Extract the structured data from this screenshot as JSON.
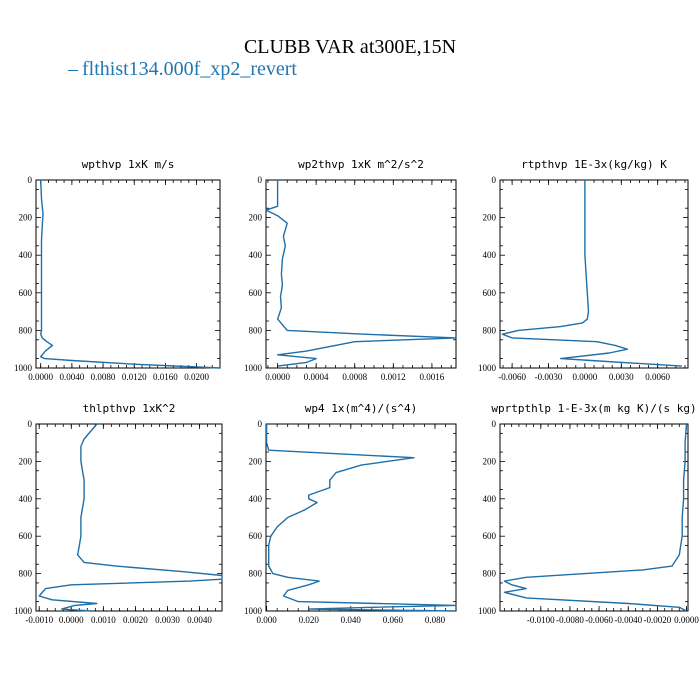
{
  "figure": {
    "title": "CLUBB VAR at300E,15N",
    "legend": {
      "label": "flthist134.000f_xp2_revert",
      "color": "#1f6fa8"
    }
  },
  "chart_data": [
    {
      "type": "line",
      "title": "wpthvp  1xK m/s",
      "xlim": [
        -0.0006,
        0.023
      ],
      "ylim": [
        1000,
        0
      ],
      "xticks": [
        0.0,
        0.004,
        0.008,
        0.012,
        0.016,
        0.02
      ],
      "xtick_labels": [
        "0.0000",
        "0.0040",
        "0.0080",
        "0.0120",
        "0.0160",
        "0.0200"
      ],
      "yticks": [
        0,
        200,
        400,
        600,
        800,
        1000
      ],
      "ytick_labels": [
        "0",
        "200",
        "400",
        "600",
        "800",
        "1000"
      ],
      "series": [
        {
          "x": [
            0.0,
            0.0001,
            0.0003,
            0.0002,
            0.0001,
            0.0001,
            0.0001,
            0.0001,
            0.0001,
            0.0001,
            0.0001,
            0.0001,
            0.0,
            0.0002,
            0.0008,
            0.0015,
            0.0006,
            0.0,
            0.0005,
            0.004,
            0.012,
            0.023
          ],
          "y": [
            0,
            100,
            180,
            250,
            320,
            400,
            480,
            560,
            640,
            720,
            780,
            800,
            820,
            840,
            860,
            880,
            910,
            940,
            950,
            960,
            980,
            1000
          ]
        }
      ]
    },
    {
      "type": "line",
      "title": "wp2thvp  1xK m^2/s^2",
      "xlim": [
        -0.00012,
        0.00185
      ],
      "ylim": [
        1000,
        0
      ],
      "xticks": [
        0.0,
        0.0004,
        0.0008,
        0.0012,
        0.0016
      ],
      "xtick_labels": [
        "0.0000",
        "0.0004",
        "0.0008",
        "0.0012",
        "0.0016"
      ],
      "yticks": [
        0,
        200,
        400,
        600,
        800,
        1000
      ],
      "ytick_labels": [
        "0",
        "200",
        "400",
        "600",
        "800",
        "1000"
      ],
      "series": [
        {
          "x": [
            0.0,
            0.0,
            0.0,
            -0.00012,
            0.0,
            0.0001,
            6e-05,
            8e-05,
            5e-05,
            4e-05,
            5e-05,
            3e-05,
            4e-05,
            0.0,
            0.0001,
            0.0009,
            0.00185,
            0.0008,
            0.0005,
            0.0003,
            0.0,
            0.0004,
            0.0003,
            0.0
          ],
          "y": [
            0,
            100,
            140,
            160,
            190,
            230,
            300,
            350,
            420,
            500,
            560,
            620,
            680,
            740,
            800,
            820,
            840,
            860,
            890,
            910,
            930,
            950,
            970,
            990
          ]
        }
      ]
    },
    {
      "type": "line",
      "title": "rtpthvp  1E-3x(kg/kg) K",
      "xlim": [
        -0.007,
        0.0085
      ],
      "ylim": [
        1000,
        0
      ],
      "xticks": [
        -0.006,
        -0.003,
        0.0,
        0.003,
        0.006
      ],
      "xtick_labels": [
        "-0.0060",
        "-0.0030",
        "0.0000",
        "0.0030",
        "0.0060"
      ],
      "yticks": [
        0,
        200,
        400,
        600,
        800,
        1000
      ],
      "ytick_labels": [
        "0",
        "200",
        "400",
        "600",
        "800",
        "1000"
      ],
      "series": [
        {
          "x": [
            0.0,
            0.0,
            0.0,
            0.0,
            0.0,
            0.0001,
            0.0002,
            0.0003,
            0.0002,
            -0.0002,
            -0.002,
            -0.0055,
            -0.0068,
            -0.006,
            0.001,
            0.0025,
            0.0035,
            0.002,
            -0.002,
            0.0005,
            0.008
          ],
          "y": [
            0,
            100,
            200,
            300,
            400,
            500,
            600,
            700,
            740,
            760,
            780,
            800,
            820,
            840,
            860,
            880,
            900,
            920,
            950,
            960,
            990
          ]
        }
      ]
    },
    {
      "type": "line",
      "title": "thlpthvp  1xK^2",
      "xlim": [
        -0.0011,
        0.0047
      ],
      "ylim": [
        1000,
        0
      ],
      "xticks": [
        -0.001,
        0.0,
        0.001,
        0.002,
        0.003,
        0.004
      ],
      "xtick_labels": [
        "-0.0010",
        "0.0000",
        "0.0010",
        "0.0020",
        "0.0030",
        "0.0040"
      ],
      "yticks": [
        0,
        200,
        400,
        600,
        800,
        1000
      ],
      "ytick_labels": [
        "0",
        "200",
        "400",
        "600",
        "800",
        "1000"
      ],
      "series": [
        {
          "x": [
            0.0008,
            0.0006,
            0.0004,
            0.0003,
            0.0003,
            0.0004,
            0.0004,
            0.0003,
            0.0003,
            0.0002,
            0.0004,
            0.0014,
            0.0035,
            0.0047,
            0.0047,
            0.0037,
            0.0,
            -0.0008,
            -0.001,
            -0.0006,
            0.0008,
            0.0001,
            -0.0003,
            0.0006
          ],
          "y": [
            0,
            40,
            80,
            120,
            200,
            300,
            400,
            500,
            600,
            700,
            740,
            760,
            790,
            810,
            830,
            840,
            860,
            880,
            920,
            940,
            960,
            970,
            990,
            1000
          ]
        }
      ]
    },
    {
      "type": "line",
      "title": "wp4  1x(m^4)/(s^4)",
      "xlim": [
        -0.0003,
        0.09
      ],
      "ylim": [
        1000,
        0
      ],
      "xticks": [
        0.0,
        0.02,
        0.04,
        0.06,
        0.08
      ],
      "xtick_labels": [
        "0.000",
        "0.020",
        "0.040",
        "0.060",
        "0.080"
      ],
      "yticks": [
        0,
        200,
        400,
        600,
        800,
        1000
      ],
      "ytick_labels": [
        "0",
        "200",
        "400",
        "600",
        "800",
        "1000"
      ],
      "series": [
        {
          "x": [
            0.0,
            0.0,
            0.0,
            0.001,
            0.07,
            0.045,
            0.033,
            0.03,
            0.03,
            0.02,
            0.02,
            0.024,
            0.018,
            0.01,
            0.005,
            0.002,
            0.001,
            0.001,
            0.001,
            0.003,
            0.01,
            0.025,
            0.02,
            0.01,
            0.008,
            0.015,
            0.09,
            0.05,
            0.02,
            0.09
          ],
          "y": [
            0,
            50,
            100,
            140,
            180,
            220,
            260,
            300,
            340,
            380,
            400,
            420,
            460,
            500,
            550,
            600,
            650,
            700,
            760,
            800,
            820,
            840,
            860,
            890,
            920,
            950,
            970,
            980,
            990,
            1000
          ]
        }
      ]
    },
    {
      "type": "line",
      "title": "wprtpthlp  1-E-3x(m kg K)/(s kg)",
      "xlim": [
        -0.0128,
        0.0001
      ],
      "ylim": [
        1000,
        0
      ],
      "xticks": [
        -0.01,
        -0.008,
        -0.006,
        -0.004,
        -0.002,
        0.0
      ],
      "xtick_labels": [
        "-0.0100",
        "-0.0080",
        "-0.0060",
        "-0.0040",
        "-0.0020",
        "0.0000"
      ],
      "yticks": [
        0,
        200,
        400,
        600,
        800,
        1000
      ],
      "ytick_labels": [
        "0",
        "200",
        "400",
        "600",
        "800",
        "1000"
      ],
      "series": [
        {
          "x": [
            0.0,
            -0.0001,
            -0.0001,
            -0.0002,
            -0.0002,
            -0.0003,
            -0.0003,
            -0.0004,
            -0.0005,
            -0.001,
            -0.003,
            -0.011,
            -0.0125,
            -0.012,
            -0.011,
            -0.0125,
            -0.011,
            -0.004,
            -0.0005,
            0.0
          ],
          "y": [
            0,
            100,
            200,
            300,
            400,
            500,
            600,
            650,
            700,
            760,
            780,
            820,
            840,
            860,
            880,
            900,
            930,
            960,
            980,
            1000
          ]
        }
      ]
    }
  ]
}
